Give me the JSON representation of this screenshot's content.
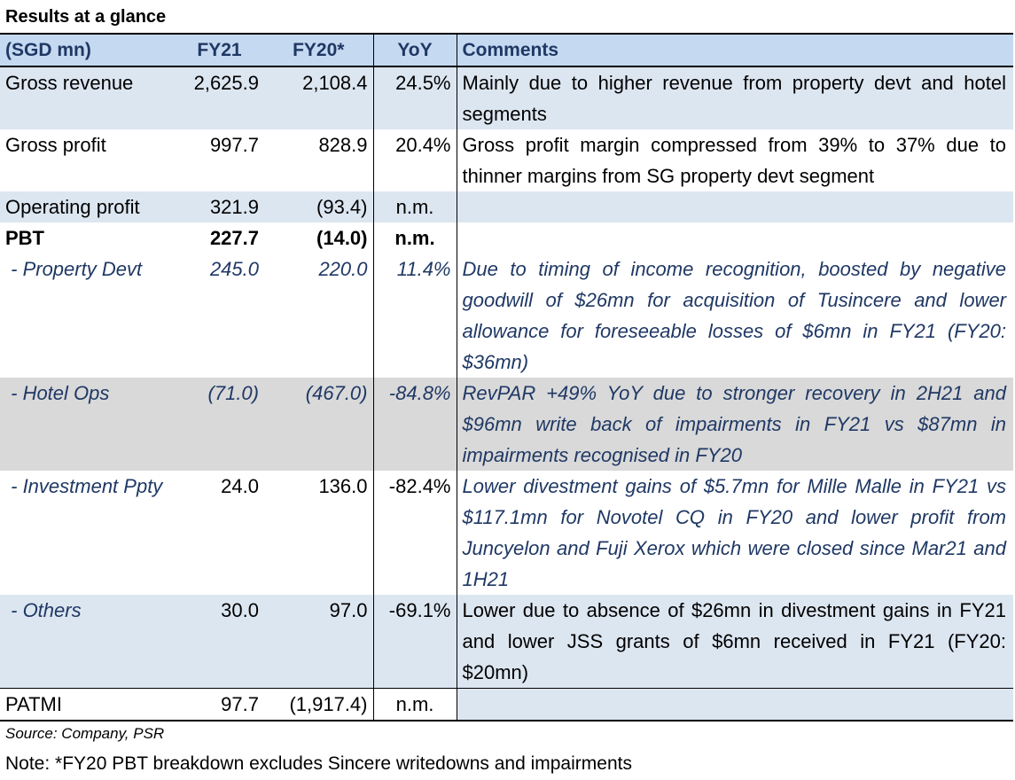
{
  "title": "Results at a glance",
  "headers": {
    "label": "(SGD mn)",
    "fy21": "FY21",
    "fy20": "FY20*",
    "yoy": "YoY",
    "comments": "Comments"
  },
  "rows": [
    {
      "label": "Gross revenue",
      "fy21": "2,625.9",
      "fy20": "2,108.4",
      "yoy": "24.5%",
      "comment": "Mainly due to higher revenue from property devt and hotel segments"
    },
    {
      "label": "Gross profit",
      "fy21": "997.7",
      "fy20": "828.9",
      "yoy": "20.4%",
      "comment": "Gross profit margin compressed from 39% to 37% due to thinner margins from SG property devt segment"
    },
    {
      "label": "Operating profit",
      "fy21": "321.9",
      "fy20": "(93.4)",
      "yoy": "n.m.",
      "comment": ""
    },
    {
      "label": "PBT",
      "fy21": "227.7",
      "fy20": "(14.0)",
      "yoy": "n.m.",
      "comment": ""
    },
    {
      "label": " - Property Devt",
      "fy21": "245.0",
      "fy20": "220.0",
      "yoy": "11.4%",
      "comment": "Due to timing of income recognition, boosted by negative goodwill of $26mn for acquisition of Tusincere and lower allowance for foreseeable losses of $6mn in FY21 (FY20: $36mn)"
    },
    {
      "label": " - Hotel Ops",
      "fy21": "(71.0)",
      "fy20": "(467.0)",
      "yoy": "-84.8%",
      "comment": "RevPAR +49% YoY due to stronger recovery in 2H21 and $96mn write back of impairments in FY21 vs $87mn in impairments recognised in FY20"
    },
    {
      "label": " - Investment Ppty",
      "fy21": "24.0",
      "fy20": "136.0",
      "yoy": "-82.4%",
      "comment": "Lower divestment gains of $5.7mn for Mille Malle in FY21 vs $117.1mn for Novotel CQ in FY20 and lower profit from Juncyelon and Fuji Xerox which were closed since Mar21 and 1H21"
    },
    {
      "label": " - Others",
      "fy21": "30.0",
      "fy20": "97.0",
      "yoy": "-69.1%",
      "comment": "Lower due to absence of $26mn in divestment gains in FY21 and lower JSS grants of $6mn received in FY21 (FY20: $20mn)"
    },
    {
      "label": "PATMI",
      "fy21": "97.7",
      "fy20": "(1,917.4)",
      "yoy": "n.m.",
      "comment": ""
    }
  ],
  "source": "Source: Company, PSR",
  "note": "Note: *FY20 PBT breakdown excludes Sincere writedowns and impairments"
}
